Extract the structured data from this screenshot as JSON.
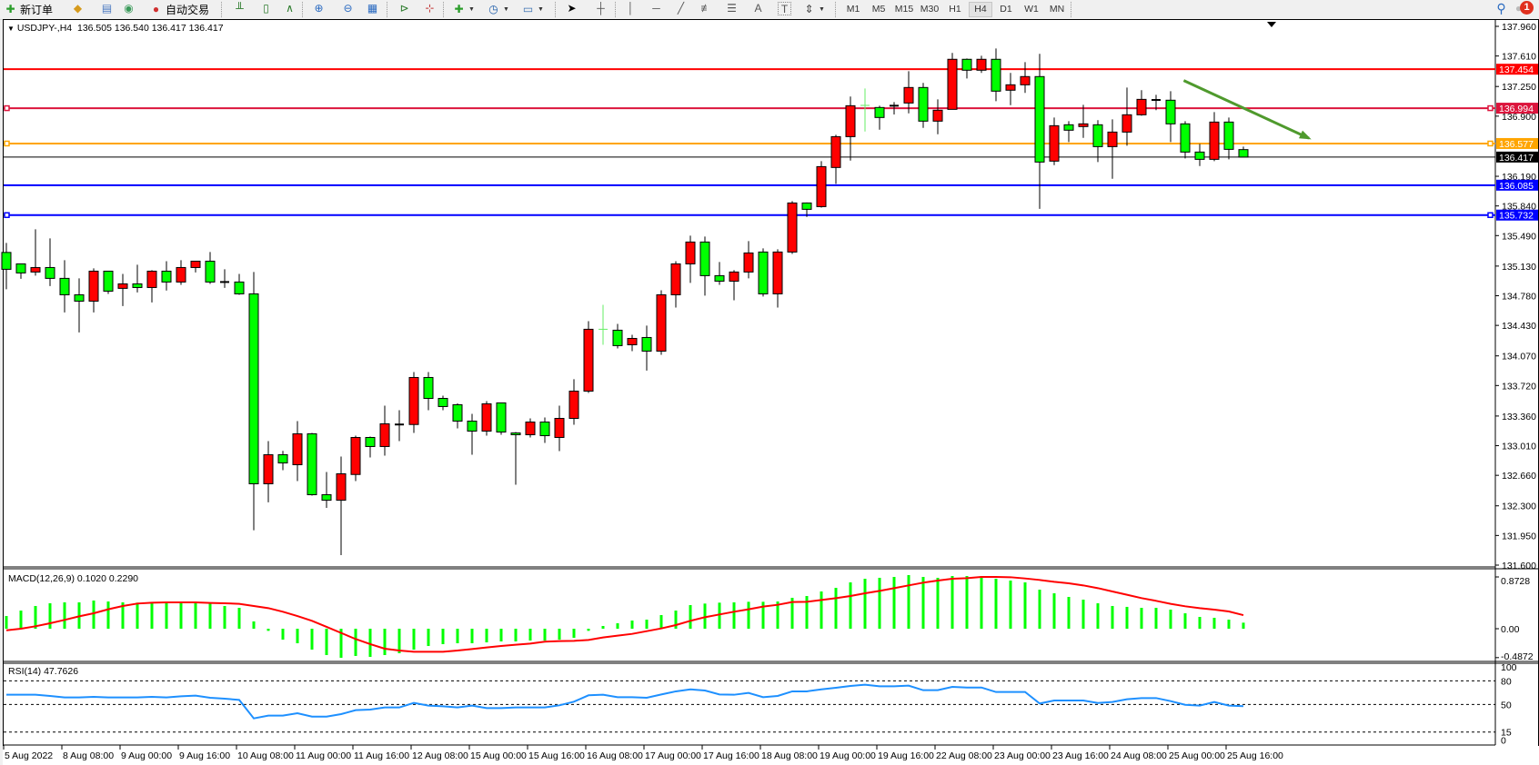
{
  "toolbar": {
    "new_order_label": "新订单",
    "auto_trading_label": "自动交易",
    "icons": [
      "new-order-icon",
      "metaeditor-icon",
      "navigator-icon",
      "signals-icon",
      "auto-trading-icon",
      "bar-chart-icon",
      "candlestick-icon",
      "line-chart-icon",
      "zoom-in-icon",
      "zoom-out-icon",
      "tile-windows-icon",
      "autoscroll-icon",
      "chart-shift-icon",
      "indicators-icon",
      "periodicity-icon",
      "templates-icon",
      "cursor-icon",
      "crosshair-icon",
      "vertical-line-icon",
      "horizontal-line-icon",
      "trendline-icon",
      "fibonacci-icon",
      "fibonacci-fan-icon",
      "text-icon",
      "text-label-icon",
      "arrows-icon",
      "search-icon",
      "notification-icon"
    ],
    "text_tool_glyph": "A",
    "label_tool_glyph": "T",
    "timeframes": [
      "M1",
      "M5",
      "M15",
      "M30",
      "H1",
      "H4",
      "D1",
      "W1",
      "MN"
    ],
    "active_timeframe": "H4",
    "notification_count": "1"
  },
  "chart": {
    "header": "USDJPY-,H4  136.505 136.540 136.417 136.417",
    "symbol": "USDJPY-",
    "timeframe": "H4",
    "colors": {
      "bull": "#ff0000",
      "bear": "#00ff00",
      "doji": "#000000",
      "highlight_doji": "#66ee66",
      "outline": "#000000",
      "arrow": "#4f9a2d"
    },
    "price_axis": [
      "137.960",
      "137.610",
      "137.250",
      "136.900",
      "136.190",
      "135.840",
      "135.490",
      "135.130",
      "134.780",
      "134.430",
      "134.070",
      "133.720",
      "133.360",
      "133.010",
      "132.660",
      "132.300",
      "131.950",
      "131.600"
    ],
    "ylim": [
      131.6,
      137.96
    ],
    "horizontal_lines": [
      {
        "price": 137.454,
        "label": "137.454",
        "color": "#ff0000",
        "marker": false
      },
      {
        "price": 136.994,
        "label": "136.994",
        "color": "#dc143c",
        "marker": true
      },
      {
        "price": 136.577,
        "label": "136.577",
        "color": "#ffa500",
        "marker": true
      },
      {
        "price": 136.417,
        "label": "136.417",
        "color": "#000000",
        "marker": false,
        "current": true
      },
      {
        "price": 136.085,
        "label": "136.085",
        "color": "#0000ff",
        "marker": false
      },
      {
        "price": 135.732,
        "label": "135.732",
        "color": "#0000ff",
        "marker": true
      }
    ],
    "arrow": {
      "from": {
        "bar": 80.9,
        "price": 137.32
      },
      "to": {
        "bar": 89.5,
        "price": 136.64
      }
    },
    "highlight_doji_indices": [
      41,
      59
    ],
    "candles": [
      [
        135.291,
        135.403,
        134.856,
        135.092
      ],
      [
        135.156,
        135.16,
        134.98,
        135.049
      ],
      [
        135.06,
        135.564,
        135.017,
        135.113
      ],
      [
        135.113,
        135.457,
        134.894,
        134.985
      ],
      [
        134.985,
        135.199,
        134.583,
        134.791
      ],
      [
        134.791,
        134.985,
        134.347,
        134.716
      ],
      [
        134.716,
        135.103,
        134.583,
        135.07
      ],
      [
        135.07,
        135.07,
        134.802,
        134.834
      ],
      [
        134.867,
        135.038,
        134.658,
        134.92
      ],
      [
        134.92,
        135.146,
        134.819,
        134.877
      ],
      [
        134.877,
        135.081,
        134.701,
        135.07
      ],
      [
        135.07,
        135.188,
        134.841,
        134.942
      ],
      [
        134.942,
        135.199,
        134.909,
        135.113
      ],
      [
        135.113,
        135.19,
        135.055,
        135.188
      ],
      [
        135.188,
        135.296,
        134.92,
        134.942
      ],
      [
        134.942,
        135.092,
        134.873,
        134.942
      ],
      [
        134.942,
        135.038,
        134.791,
        134.802
      ],
      [
        134.802,
        135.06,
        132.012,
        132.56
      ],
      [
        132.56,
        133.064,
        132.341,
        132.903
      ],
      [
        132.903,
        132.949,
        132.721,
        132.806
      ],
      [
        132.785,
        133.3,
        132.592,
        133.15
      ],
      [
        133.15,
        133.16,
        132.42,
        132.431
      ],
      [
        132.431,
        132.699,
        132.276,
        132.366
      ],
      [
        132.366,
        132.881,
        131.718,
        132.678
      ],
      [
        132.67,
        133.128,
        132.592,
        133.107
      ],
      [
        133.107,
        133.118,
        132.871,
        133.0
      ],
      [
        133.0,
        133.482,
        132.892,
        133.268
      ],
      [
        133.26,
        133.429,
        133.064,
        133.26
      ],
      [
        133.26,
        133.879,
        133.16,
        133.815
      ],
      [
        133.815,
        133.879,
        133.429,
        133.568
      ],
      [
        133.568,
        133.6,
        133.429,
        133.472
      ],
      [
        133.493,
        133.51,
        133.214,
        133.3
      ],
      [
        133.3,
        133.386,
        132.903,
        133.182
      ],
      [
        133.182,
        133.536,
        133.128,
        133.504
      ],
      [
        133.515,
        133.52,
        133.139,
        133.171
      ],
      [
        133.16,
        133.171,
        132.549,
        133.139
      ],
      [
        133.139,
        133.332,
        133.107,
        133.289
      ],
      [
        133.289,
        133.343,
        133.042,
        133.128
      ],
      [
        133.107,
        133.482,
        132.946,
        133.332
      ],
      [
        133.332,
        133.794,
        133.257,
        133.654
      ],
      [
        133.654,
        134.48,
        133.633,
        134.384
      ],
      [
        134.384,
        134.673,
        134.201,
        134.384
      ],
      [
        134.373,
        134.448,
        134.158,
        134.191
      ],
      [
        134.201,
        134.319,
        134.126,
        134.276
      ],
      [
        134.287,
        134.427,
        133.897,
        134.126
      ],
      [
        134.126,
        134.845,
        134.083,
        134.791
      ],
      [
        134.791,
        135.188,
        134.641,
        135.156
      ],
      [
        135.156,
        135.489,
        134.931,
        135.414
      ],
      [
        135.414,
        135.478,
        134.781,
        135.017
      ],
      [
        135.017,
        135.178,
        134.909,
        134.952
      ],
      [
        134.952,
        135.081,
        134.727,
        135.06
      ],
      [
        135.06,
        135.425,
        134.985,
        135.285
      ],
      [
        135.296,
        135.339,
        134.77,
        134.802
      ],
      [
        134.802,
        135.328,
        134.641,
        135.296
      ],
      [
        135.296,
        135.897,
        135.274,
        135.875
      ],
      [
        135.875,
        135.88,
        135.71,
        135.8
      ],
      [
        135.832,
        136.369,
        135.821,
        136.304
      ],
      [
        136.294,
        136.68,
        136.1,
        136.658
      ],
      [
        136.658,
        137.131,
        136.375,
        137.023
      ],
      [
        137.027,
        137.227,
        136.719,
        137.027
      ],
      [
        137.002,
        137.023,
        136.74,
        136.884
      ],
      [
        137.023,
        137.066,
        136.919,
        137.023
      ],
      [
        137.055,
        137.431,
        136.933,
        137.238
      ],
      [
        137.238,
        137.292,
        136.762,
        136.841
      ],
      [
        136.841,
        137.098,
        136.686,
        136.97
      ],
      [
        136.98,
        137.646,
        136.98,
        137.571
      ],
      [
        137.571,
        137.581,
        137.345,
        137.442
      ],
      [
        137.442,
        137.613,
        137.41,
        137.571
      ],
      [
        137.571,
        137.699,
        137.077,
        137.195
      ],
      [
        137.206,
        137.41,
        137.03,
        137.27
      ],
      [
        137.27,
        137.538,
        137.174,
        137.367
      ],
      [
        137.367,
        137.635,
        135.806,
        136.358
      ],
      [
        136.369,
        136.884,
        136.322,
        136.787
      ],
      [
        136.798,
        136.841,
        136.594,
        136.734
      ],
      [
        136.777,
        137.034,
        136.643,
        136.809
      ],
      [
        136.798,
        136.852,
        136.358,
        136.54
      ],
      [
        136.54,
        136.862,
        136.161,
        136.712
      ],
      [
        136.712,
        137.238,
        136.551,
        136.916
      ],
      [
        136.916,
        137.206,
        136.905,
        137.098
      ],
      [
        137.091,
        137.152,
        136.97,
        137.091
      ],
      [
        137.088,
        137.195,
        136.594,
        136.809
      ],
      [
        136.809,
        136.841,
        136.401,
        136.476
      ],
      [
        136.476,
        136.573,
        136.311,
        136.39
      ],
      [
        136.39,
        136.948,
        136.369,
        136.83
      ],
      [
        136.83,
        136.884,
        136.39,
        136.508
      ],
      [
        136.505,
        136.54,
        136.417,
        136.417
      ]
    ],
    "time_axis": [
      "5 Aug 2022",
      "8 Aug 08:00",
      "9 Aug 00:00",
      "9 Aug 16:00",
      "10 Aug 08:00",
      "11 Aug 00:00",
      "11 Aug 16:00",
      "12 Aug 08:00",
      "15 Aug 00:00",
      "15 Aug 16:00",
      "16 Aug 08:00",
      "17 Aug 00:00",
      "17 Aug 16:00",
      "18 Aug 08:00",
      "19 Aug 00:00",
      "19 Aug 16:00",
      "22 Aug 08:00",
      "23 Aug 00:00",
      "23 Aug 16:00",
      "24 Aug 08:00",
      "25 Aug 00:00",
      "25 Aug 16:00"
    ]
  },
  "macd": {
    "label": "MACD(12,26,9) 0.1020 0.2290",
    "axis": [
      "0.8728",
      "0.00",
      "-0.4872"
    ],
    "ylim": [
      -0.4872,
      0.8728
    ],
    "colors": {
      "histogram": "#00ff00",
      "signal": "#ff0000"
    },
    "histogram": [
      0.214,
      0.306,
      0.383,
      0.429,
      0.444,
      0.444,
      0.475,
      0.459,
      0.444,
      0.439,
      0.429,
      0.429,
      0.429,
      0.429,
      0.429,
      0.383,
      0.352,
      0.123,
      -0.036,
      -0.184,
      -0.245,
      -0.352,
      -0.444,
      -0.49,
      -0.459,
      -0.475,
      -0.444,
      -0.413,
      -0.352,
      -0.291,
      -0.26,
      -0.245,
      -0.245,
      -0.23,
      -0.214,
      -0.214,
      -0.199,
      -0.199,
      -0.184,
      -0.153,
      -0.036,
      0.046,
      0.092,
      0.138,
      0.153,
      0.23,
      0.306,
      0.398,
      0.424,
      0.439,
      0.444,
      0.454,
      0.454,
      0.459,
      0.521,
      0.551,
      0.628,
      0.689,
      0.781,
      0.842,
      0.858,
      0.873,
      0.904,
      0.873,
      0.858,
      0.888,
      0.888,
      0.888,
      0.842,
      0.812,
      0.781,
      0.658,
      0.597,
      0.536,
      0.49,
      0.429,
      0.383,
      0.368,
      0.352,
      0.352,
      0.322,
      0.26,
      0.199,
      0.184,
      0.153,
      0.102
    ],
    "signal": [
      -0.026,
      0,
      0.041,
      0.092,
      0.148,
      0.209,
      0.26,
      0.327,
      0.383,
      0.424,
      0.439,
      0.444,
      0.444,
      0.444,
      0.434,
      0.429,
      0.419,
      0.383,
      0.347,
      0.286,
      0.214,
      0.133,
      0.031,
      -0.071,
      -0.174,
      -0.26,
      -0.337,
      -0.368,
      -0.388,
      -0.388,
      -0.388,
      -0.368,
      -0.342,
      -0.316,
      -0.291,
      -0.27,
      -0.25,
      -0.219,
      -0.209,
      -0.204,
      -0.189,
      -0.148,
      -0.117,
      -0.087,
      -0.041,
      0.005,
      0.061,
      0.133,
      0.194,
      0.24,
      0.286,
      0.327,
      0.373,
      0.403,
      0.449,
      0.454,
      0.485,
      0.515,
      0.551,
      0.597,
      0.638,
      0.684,
      0.73,
      0.776,
      0.812,
      0.842,
      0.852,
      0.873,
      0.873,
      0.868,
      0.847,
      0.822,
      0.791,
      0.766,
      0.73,
      0.684,
      0.628,
      0.572,
      0.516,
      0.47,
      0.419,
      0.378,
      0.347,
      0.322,
      0.291,
      0.229
    ]
  },
  "rsi": {
    "label": "RSI(14) 47.7626",
    "axis": [
      "100",
      "80",
      "50",
      "15",
      "0"
    ],
    "levels": [
      80,
      50,
      15
    ],
    "ylim": [
      0,
      100
    ],
    "color": "#1e90ff",
    "values": [
      62.3,
      62.3,
      62.3,
      60.8,
      58.9,
      58.9,
      59.6,
      58.9,
      58.9,
      58.9,
      59.6,
      58.9,
      60.4,
      61.2,
      58.5,
      57.3,
      55.8,
      32.3,
      35.8,
      35.8,
      38.9,
      34.6,
      34.6,
      37.7,
      42.7,
      43.5,
      46.2,
      46.2,
      51.9,
      48.5,
      47.7,
      46.2,
      48.5,
      45.4,
      45.4,
      46.2,
      46.2,
      46.2,
      48.9,
      53.5,
      61.6,
      62.3,
      59.2,
      59.2,
      58.5,
      62.7,
      66.6,
      69.2,
      67.7,
      62.7,
      62.3,
      64.6,
      59.2,
      60.8,
      66.6,
      66.6,
      69.2,
      71.2,
      73.5,
      75.0,
      73.1,
      73.1,
      73.9,
      68.1,
      68.1,
      72.3,
      71.5,
      71.5,
      65.8,
      65.8,
      65.8,
      51.2,
      55.0,
      55.0,
      55.0,
      51.9,
      53.1,
      56.6,
      58.1,
      58.1,
      54.2,
      49.6,
      48.5,
      53.1,
      48.5,
      47.76
    ]
  }
}
